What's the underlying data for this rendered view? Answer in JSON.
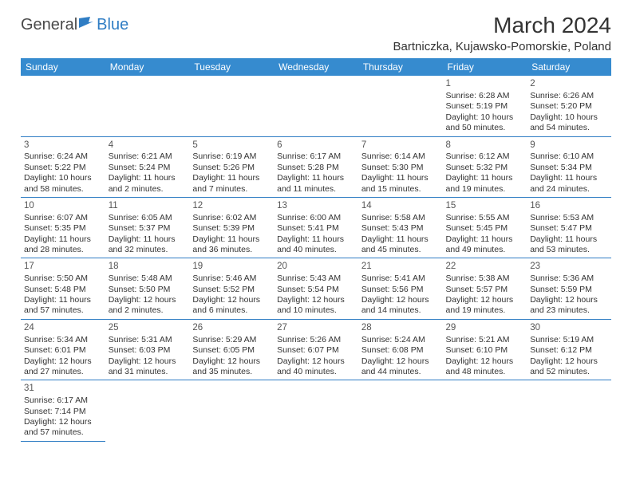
{
  "logo": {
    "text_general": "Genera",
    "text_l": "l",
    "text_blue": "Blue"
  },
  "title": "March 2024",
  "location": "Bartniczka, Kujawsko-Pomorskie, Poland",
  "colors": {
    "header_bg": "#368bcf",
    "border": "#2f7dc4",
    "text": "#333333"
  },
  "day_headers": [
    "Sunday",
    "Monday",
    "Tuesday",
    "Wednesday",
    "Thursday",
    "Friday",
    "Saturday"
  ],
  "weeks": [
    [
      null,
      null,
      null,
      null,
      null,
      {
        "n": "1",
        "sr": "Sunrise: 6:28 AM",
        "ss": "Sunset: 5:19 PM",
        "d1": "Daylight: 10 hours",
        "d2": "and 50 minutes."
      },
      {
        "n": "2",
        "sr": "Sunrise: 6:26 AM",
        "ss": "Sunset: 5:20 PM",
        "d1": "Daylight: 10 hours",
        "d2": "and 54 minutes."
      }
    ],
    [
      {
        "n": "3",
        "sr": "Sunrise: 6:24 AM",
        "ss": "Sunset: 5:22 PM",
        "d1": "Daylight: 10 hours",
        "d2": "and 58 minutes."
      },
      {
        "n": "4",
        "sr": "Sunrise: 6:21 AM",
        "ss": "Sunset: 5:24 PM",
        "d1": "Daylight: 11 hours",
        "d2": "and 2 minutes."
      },
      {
        "n": "5",
        "sr": "Sunrise: 6:19 AM",
        "ss": "Sunset: 5:26 PM",
        "d1": "Daylight: 11 hours",
        "d2": "and 7 minutes."
      },
      {
        "n": "6",
        "sr": "Sunrise: 6:17 AM",
        "ss": "Sunset: 5:28 PM",
        "d1": "Daylight: 11 hours",
        "d2": "and 11 minutes."
      },
      {
        "n": "7",
        "sr": "Sunrise: 6:14 AM",
        "ss": "Sunset: 5:30 PM",
        "d1": "Daylight: 11 hours",
        "d2": "and 15 minutes."
      },
      {
        "n": "8",
        "sr": "Sunrise: 6:12 AM",
        "ss": "Sunset: 5:32 PM",
        "d1": "Daylight: 11 hours",
        "d2": "and 19 minutes."
      },
      {
        "n": "9",
        "sr": "Sunrise: 6:10 AM",
        "ss": "Sunset: 5:34 PM",
        "d1": "Daylight: 11 hours",
        "d2": "and 24 minutes."
      }
    ],
    [
      {
        "n": "10",
        "sr": "Sunrise: 6:07 AM",
        "ss": "Sunset: 5:35 PM",
        "d1": "Daylight: 11 hours",
        "d2": "and 28 minutes."
      },
      {
        "n": "11",
        "sr": "Sunrise: 6:05 AM",
        "ss": "Sunset: 5:37 PM",
        "d1": "Daylight: 11 hours",
        "d2": "and 32 minutes."
      },
      {
        "n": "12",
        "sr": "Sunrise: 6:02 AM",
        "ss": "Sunset: 5:39 PM",
        "d1": "Daylight: 11 hours",
        "d2": "and 36 minutes."
      },
      {
        "n": "13",
        "sr": "Sunrise: 6:00 AM",
        "ss": "Sunset: 5:41 PM",
        "d1": "Daylight: 11 hours",
        "d2": "and 40 minutes."
      },
      {
        "n": "14",
        "sr": "Sunrise: 5:58 AM",
        "ss": "Sunset: 5:43 PM",
        "d1": "Daylight: 11 hours",
        "d2": "and 45 minutes."
      },
      {
        "n": "15",
        "sr": "Sunrise: 5:55 AM",
        "ss": "Sunset: 5:45 PM",
        "d1": "Daylight: 11 hours",
        "d2": "and 49 minutes."
      },
      {
        "n": "16",
        "sr": "Sunrise: 5:53 AM",
        "ss": "Sunset: 5:47 PM",
        "d1": "Daylight: 11 hours",
        "d2": "and 53 minutes."
      }
    ],
    [
      {
        "n": "17",
        "sr": "Sunrise: 5:50 AM",
        "ss": "Sunset: 5:48 PM",
        "d1": "Daylight: 11 hours",
        "d2": "and 57 minutes."
      },
      {
        "n": "18",
        "sr": "Sunrise: 5:48 AM",
        "ss": "Sunset: 5:50 PM",
        "d1": "Daylight: 12 hours",
        "d2": "and 2 minutes."
      },
      {
        "n": "19",
        "sr": "Sunrise: 5:46 AM",
        "ss": "Sunset: 5:52 PM",
        "d1": "Daylight: 12 hours",
        "d2": "and 6 minutes."
      },
      {
        "n": "20",
        "sr": "Sunrise: 5:43 AM",
        "ss": "Sunset: 5:54 PM",
        "d1": "Daylight: 12 hours",
        "d2": "and 10 minutes."
      },
      {
        "n": "21",
        "sr": "Sunrise: 5:41 AM",
        "ss": "Sunset: 5:56 PM",
        "d1": "Daylight: 12 hours",
        "d2": "and 14 minutes."
      },
      {
        "n": "22",
        "sr": "Sunrise: 5:38 AM",
        "ss": "Sunset: 5:57 PM",
        "d1": "Daylight: 12 hours",
        "d2": "and 19 minutes."
      },
      {
        "n": "23",
        "sr": "Sunrise: 5:36 AM",
        "ss": "Sunset: 5:59 PM",
        "d1": "Daylight: 12 hours",
        "d2": "and 23 minutes."
      }
    ],
    [
      {
        "n": "24",
        "sr": "Sunrise: 5:34 AM",
        "ss": "Sunset: 6:01 PM",
        "d1": "Daylight: 12 hours",
        "d2": "and 27 minutes."
      },
      {
        "n": "25",
        "sr": "Sunrise: 5:31 AM",
        "ss": "Sunset: 6:03 PM",
        "d1": "Daylight: 12 hours",
        "d2": "and 31 minutes."
      },
      {
        "n": "26",
        "sr": "Sunrise: 5:29 AM",
        "ss": "Sunset: 6:05 PM",
        "d1": "Daylight: 12 hours",
        "d2": "and 35 minutes."
      },
      {
        "n": "27",
        "sr": "Sunrise: 5:26 AM",
        "ss": "Sunset: 6:07 PM",
        "d1": "Daylight: 12 hours",
        "d2": "and 40 minutes."
      },
      {
        "n": "28",
        "sr": "Sunrise: 5:24 AM",
        "ss": "Sunset: 6:08 PM",
        "d1": "Daylight: 12 hours",
        "d2": "and 44 minutes."
      },
      {
        "n": "29",
        "sr": "Sunrise: 5:21 AM",
        "ss": "Sunset: 6:10 PM",
        "d1": "Daylight: 12 hours",
        "d2": "and 48 minutes."
      },
      {
        "n": "30",
        "sr": "Sunrise: 5:19 AM",
        "ss": "Sunset: 6:12 PM",
        "d1": "Daylight: 12 hours",
        "d2": "and 52 minutes."
      }
    ],
    [
      {
        "n": "31",
        "sr": "Sunrise: 6:17 AM",
        "ss": "Sunset: 7:14 PM",
        "d1": "Daylight: 12 hours",
        "d2": "and 57 minutes."
      },
      null,
      null,
      null,
      null,
      null,
      null
    ]
  ]
}
